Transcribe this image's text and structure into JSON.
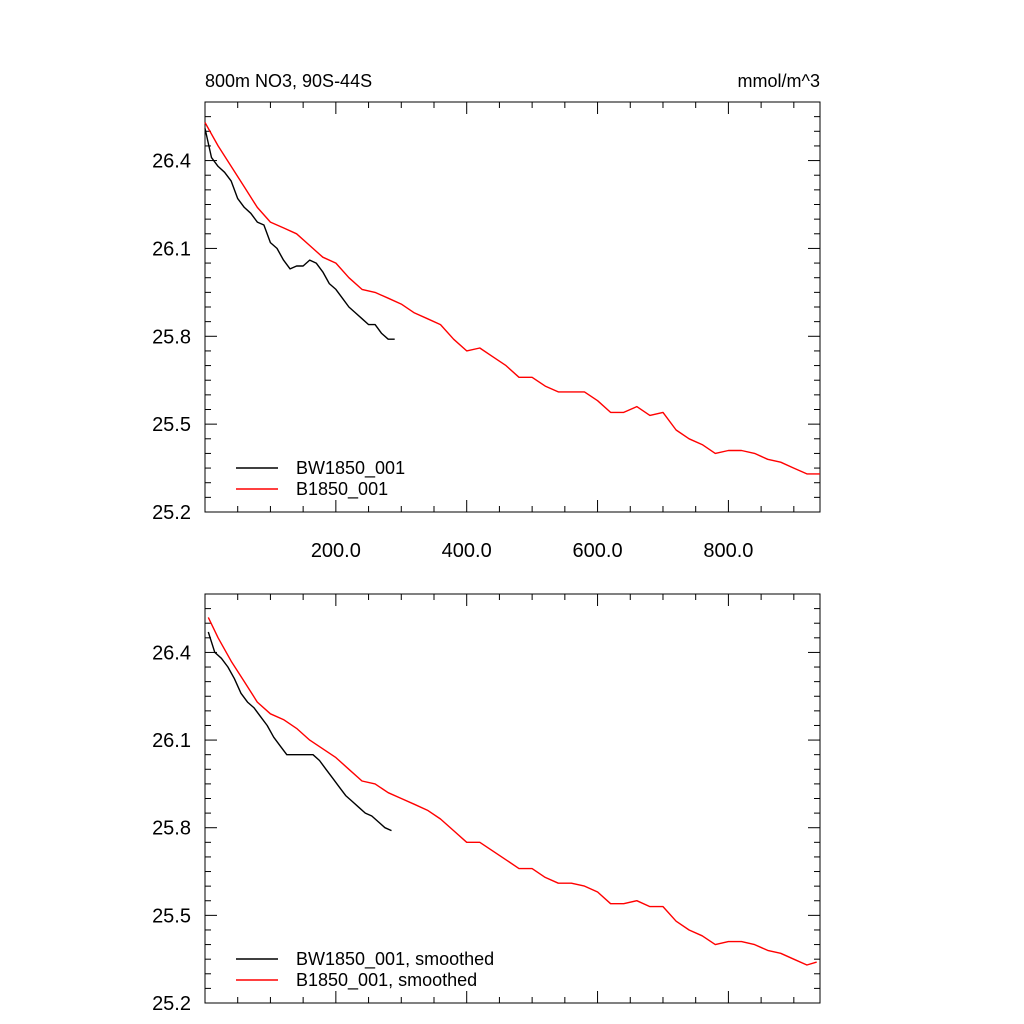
{
  "chart_data": [
    {
      "type": "line",
      "title": "800m NO3, 90S-44S",
      "units": "mmol/m^3",
      "xlim": [
        0,
        940
      ],
      "ylim": [
        25.2,
        26.6
      ],
      "x_ticks": [
        200,
        400,
        600,
        800
      ],
      "x_tick_labels": [
        "200.0",
        "400.0",
        "600.0",
        "800.0"
      ],
      "y_ticks": [
        25.2,
        25.5,
        25.8,
        26.1,
        26.4
      ],
      "y_tick_labels": [
        "25.2",
        "25.5",
        "25.8",
        "26.1",
        "26.4"
      ],
      "legend_position": "bottom-left",
      "series": [
        {
          "name": "BW1850_001",
          "color": "#000000",
          "x": [
            0,
            10,
            20,
            30,
            40,
            50,
            60,
            70,
            80,
            90,
            100,
            110,
            120,
            130,
            140,
            150,
            160,
            170,
            180,
            190,
            200,
            210,
            220,
            230,
            240,
            250,
            260,
            270,
            280,
            290
          ],
          "y": [
            26.51,
            26.41,
            26.38,
            26.36,
            26.33,
            26.27,
            26.24,
            26.22,
            26.19,
            26.18,
            26.12,
            26.1,
            26.06,
            26.03,
            26.04,
            26.04,
            26.06,
            26.05,
            26.02,
            25.98,
            25.96,
            25.93,
            25.9,
            25.88,
            25.86,
            25.84,
            25.84,
            25.81,
            25.79,
            25.79
          ]
        },
        {
          "name": "B1850_001",
          "color": "#ff0000",
          "x": [
            0,
            20,
            40,
            60,
            80,
            100,
            120,
            140,
            160,
            180,
            200,
            220,
            240,
            260,
            280,
            300,
            320,
            340,
            360,
            380,
            400,
            420,
            440,
            460,
            480,
            500,
            520,
            540,
            560,
            580,
            600,
            620,
            640,
            660,
            680,
            700,
            720,
            740,
            760,
            780,
            800,
            820,
            840,
            860,
            880,
            900,
            920,
            940
          ],
          "y": [
            26.53,
            26.45,
            26.38,
            26.31,
            26.24,
            26.19,
            26.17,
            26.15,
            26.11,
            26.07,
            26.05,
            26.0,
            25.96,
            25.95,
            25.93,
            25.91,
            25.88,
            25.86,
            25.84,
            25.79,
            25.75,
            25.76,
            25.73,
            25.7,
            25.66,
            25.66,
            25.63,
            25.61,
            25.61,
            25.61,
            25.58,
            25.54,
            25.54,
            25.56,
            25.53,
            25.54,
            25.48,
            25.45,
            25.43,
            25.4,
            25.41,
            25.41,
            25.4,
            25.38,
            25.37,
            25.35,
            25.33,
            25.33
          ]
        }
      ]
    },
    {
      "type": "line",
      "title": "",
      "xlim": [
        0,
        940
      ],
      "ylim": [
        25.2,
        26.6
      ],
      "x_ticks": [
        200,
        400,
        600,
        800
      ],
      "y_ticks": [
        25.2,
        25.5,
        25.8,
        26.1,
        26.4
      ],
      "y_tick_labels": [
        "25.2",
        "25.5",
        "25.8",
        "26.1",
        "26.4"
      ],
      "legend_position": "bottom-left",
      "series": [
        {
          "name": "BW1850_001, smoothed",
          "color": "#000000",
          "x": [
            5,
            15,
            25,
            35,
            45,
            55,
            65,
            75,
            85,
            95,
            105,
            115,
            125,
            135,
            145,
            155,
            165,
            175,
            185,
            195,
            205,
            215,
            225,
            235,
            245,
            255,
            265,
            275,
            285
          ],
          "y": [
            26.47,
            26.4,
            26.38,
            26.35,
            26.31,
            26.26,
            26.23,
            26.21,
            26.18,
            26.15,
            26.11,
            26.08,
            26.05,
            26.05,
            26.05,
            26.05,
            26.05,
            26.03,
            26.0,
            25.97,
            25.94,
            25.91,
            25.89,
            25.87,
            25.85,
            25.84,
            25.82,
            25.8,
            25.79
          ]
        },
        {
          "name": "B1850_001, smoothed",
          "color": "#ff0000",
          "x": [
            5,
            20,
            40,
            60,
            80,
            100,
            120,
            140,
            160,
            180,
            200,
            220,
            240,
            260,
            280,
            300,
            320,
            340,
            360,
            380,
            400,
            420,
            440,
            460,
            480,
            500,
            520,
            540,
            560,
            580,
            600,
            620,
            640,
            660,
            680,
            700,
            720,
            740,
            760,
            780,
            800,
            820,
            840,
            860,
            880,
            900,
            920,
            935
          ],
          "y": [
            26.52,
            26.45,
            26.37,
            26.3,
            26.23,
            26.19,
            26.17,
            26.14,
            26.1,
            26.07,
            26.04,
            26.0,
            25.96,
            25.95,
            25.92,
            25.9,
            25.88,
            25.86,
            25.83,
            25.79,
            25.75,
            25.75,
            25.72,
            25.69,
            25.66,
            25.66,
            25.63,
            25.61,
            25.61,
            25.6,
            25.58,
            25.54,
            25.54,
            25.55,
            25.53,
            25.53,
            25.48,
            25.45,
            25.43,
            25.4,
            25.41,
            25.41,
            25.4,
            25.38,
            25.37,
            25.35,
            25.33,
            25.34
          ]
        }
      ]
    }
  ]
}
